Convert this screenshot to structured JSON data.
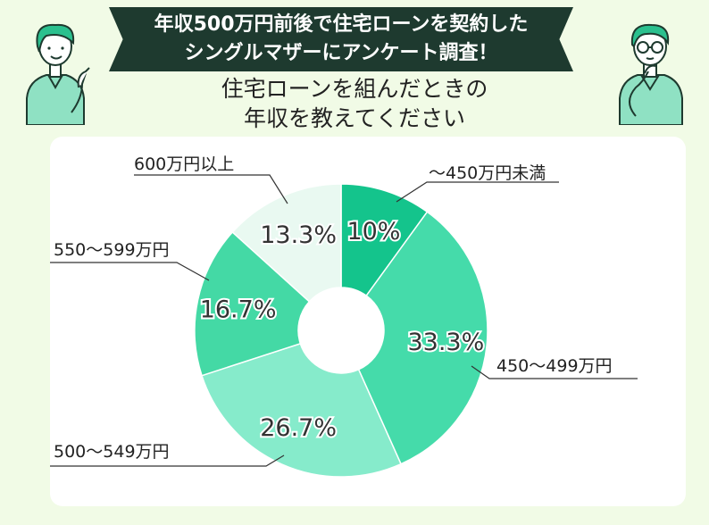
{
  "header": {
    "banner_line1": "年収500万円前後で住宅ローンを契約した",
    "banner_line2": "シングルマザーにアンケート調査！",
    "question_line1": "住宅ローンを組んだときの",
    "question_line2": "年収を教えてください"
  },
  "chart_data": {
    "type": "pie",
    "variant": "donut",
    "categories": [
      "〜450万円未満",
      "450〜499万円",
      "500〜549万円",
      "550〜599万円",
      "600万円以上"
    ],
    "values": [
      10,
      33.3,
      26.7,
      16.7,
      13.3
    ],
    "value_labels": [
      "10%",
      "33.3%",
      "26.7%",
      "16.7%",
      "13.3%"
    ],
    "colors": [
      "#14c48c",
      "#45dbaa",
      "#86ebcb",
      "#44d9a5",
      "#e9f9f1"
    ],
    "start_angle_deg": 0,
    "direction": "clockwise"
  }
}
